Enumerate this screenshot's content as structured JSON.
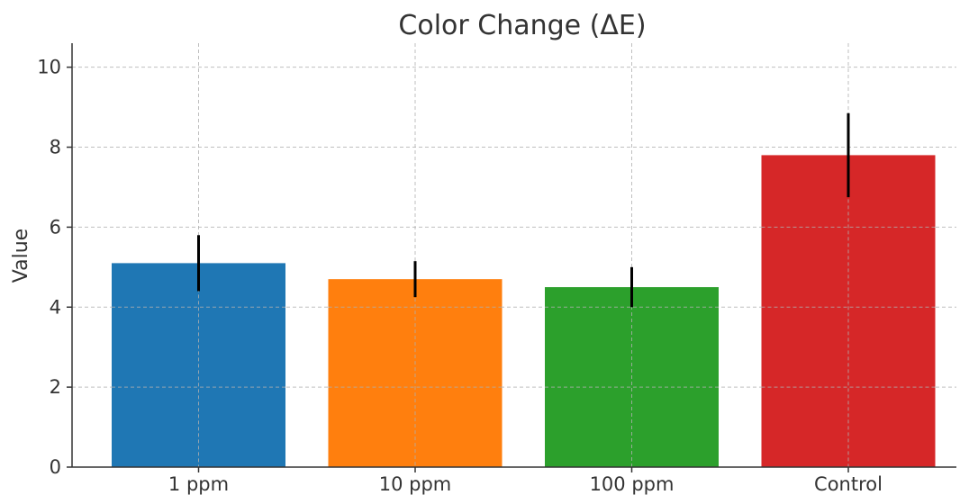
{
  "chart_data": {
    "type": "bar",
    "title": "Color Change (ΔE)",
    "xlabel": "",
    "ylabel": "Value",
    "categories": [
      "1 ppm",
      "10 ppm",
      "100 ppm",
      "Control"
    ],
    "values": [
      5.1,
      4.7,
      4.5,
      7.8
    ],
    "errors": [
      0.7,
      0.45,
      0.5,
      1.05
    ],
    "colors": [
      "#1f77b4",
      "#ff7f0e",
      "#2ca02c",
      "#d62728"
    ],
    "ylim": [
      0,
      10.6
    ],
    "yticks": [
      0,
      2,
      4,
      6,
      8,
      10
    ],
    "grid": true,
    "legend": "none"
  }
}
